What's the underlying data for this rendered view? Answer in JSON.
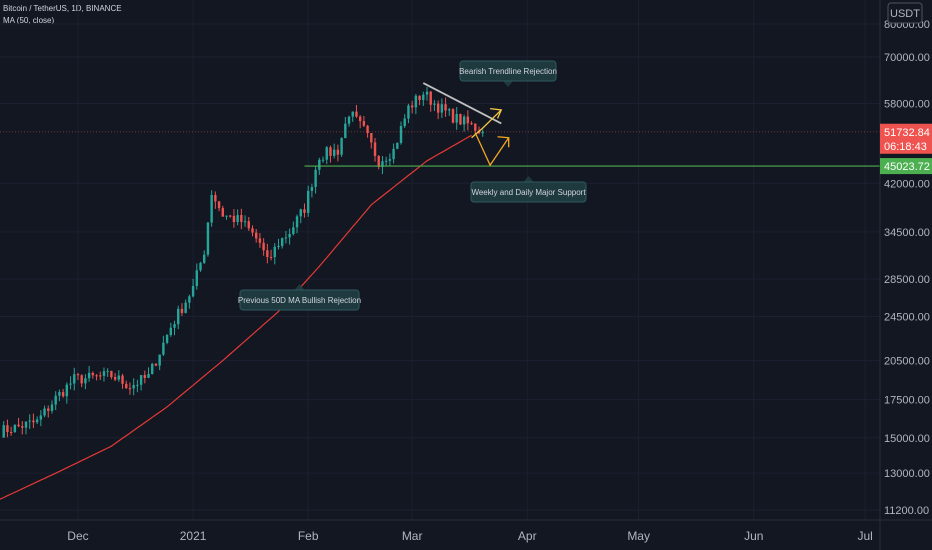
{
  "header": {
    "symbol_line": "Bitcoin / TetherUS, 1D, BINANCE",
    "indicator_line": "MA (50, close)"
  },
  "currency_badge": "USDT",
  "colors": {
    "background": "#131722",
    "up": "#26a69a",
    "down": "#ef5350",
    "ma": "#e53935",
    "support": "#4caf50",
    "trendline": "#c0c0c0",
    "arrow": "#f5c842",
    "price_tag": "#ef5350",
    "support_tag": "#4caf50"
  },
  "chart_data": {
    "type": "candlestick",
    "y_scale": "log",
    "ylim": [
      11200,
      80000
    ],
    "y_ticks": [
      "80000.00",
      "70000.00",
      "58000.00",
      "42000.00",
      "34500.00",
      "28500.00",
      "24500.00",
      "20500.00",
      "17500.00",
      "15000.00",
      "13000.00",
      "11200.00"
    ],
    "x_ticks": [
      "Dec",
      "2021",
      "Feb",
      "Mar",
      "Apr",
      "May",
      "Jun",
      "Jul"
    ],
    "x_range": [
      "2020-11-10",
      "2021-07-05"
    ],
    "last_price": {
      "value": "51732.84",
      "countdown": "06:18:43"
    },
    "support_level": {
      "value": "45023.72"
    },
    "series": [
      {
        "name": "MA (50, close)",
        "kind": "line"
      }
    ],
    "annotations": [
      {
        "text": "Bearish Trendline Rejection"
      },
      {
        "text": "Weekly and Daily Major Support"
      },
      {
        "text": "Previous 50D MA Bullish Rejection"
      }
    ]
  }
}
